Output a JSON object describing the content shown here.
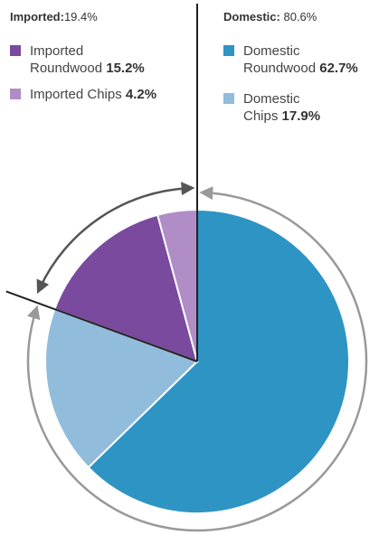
{
  "groups": {
    "imported": {
      "label": "Imported:",
      "value": "19.4%"
    },
    "domestic": {
      "label": "Domestic:",
      "value": "80.6%"
    }
  },
  "legend": [
    {
      "line1": "Imported",
      "line2": "Roundwood",
      "pct": "15.2%",
      "color": "#7a4a9e"
    },
    {
      "line1": "Imported Chips",
      "line2": "",
      "pct": "4.2%",
      "color": "#b08dc6"
    },
    {
      "line1": "Domestic",
      "line2": "Roundwood",
      "pct": "62.7%",
      "color": "#2e94c4"
    },
    {
      "line1": "Domestic",
      "line2": "Chips",
      "pct": "17.9%",
      "color": "#92bcdc"
    }
  ],
  "chart_data": {
    "type": "pie",
    "slices": [
      {
        "label": "Domestic Roundwood",
        "value": 62.7,
        "color": "#2e94c4"
      },
      {
        "label": "Domestic Chips",
        "value": 17.9,
        "color": "#92bcdc"
      },
      {
        "label": "Imported Roundwood",
        "value": 15.2,
        "color": "#7a4a9e"
      },
      {
        "label": "Imported Chips",
        "value": 4.2,
        "color": "#b08dc6"
      }
    ],
    "groups": [
      {
        "label": "Domestic",
        "value": 80.6
      },
      {
        "label": "Imported",
        "value": 19.4
      }
    ],
    "start": "12 o'clock",
    "direction": "clockwise"
  }
}
